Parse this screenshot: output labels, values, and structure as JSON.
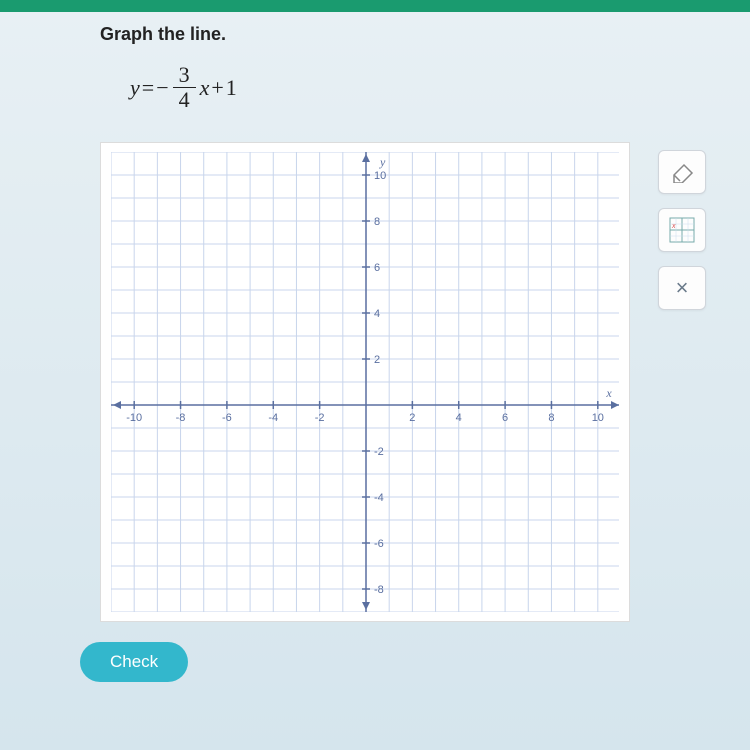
{
  "instruction": "Graph the line.",
  "equation": {
    "lhs": "y",
    "eq": "=",
    "neg": "−",
    "num": "3",
    "den": "4",
    "var": "x",
    "plus": "+",
    "const": "1"
  },
  "graph": {
    "type": "cartesian-grid",
    "x_min": -11,
    "x_max": 11,
    "y_min": -9,
    "y_max": 11,
    "grid_step": 1,
    "tick_step": 2,
    "x_ticks": [
      -10,
      -8,
      -6,
      -4,
      -2,
      2,
      4,
      6,
      8,
      10
    ],
    "y_ticks_pos": [
      2,
      4,
      6,
      8,
      10
    ],
    "y_ticks_neg": [
      -2,
      -4,
      -6,
      -8
    ],
    "x_label": "x",
    "y_label": "y",
    "grid_color": "#c8d5ec",
    "axis_color": "#5a6fa0",
    "background": "#ffffff"
  },
  "tools": {
    "eraser_name": "eraser-icon",
    "grid_name": "grid-tool-icon",
    "close_name": "close-icon",
    "close_glyph": "×"
  },
  "check_label": "Check"
}
